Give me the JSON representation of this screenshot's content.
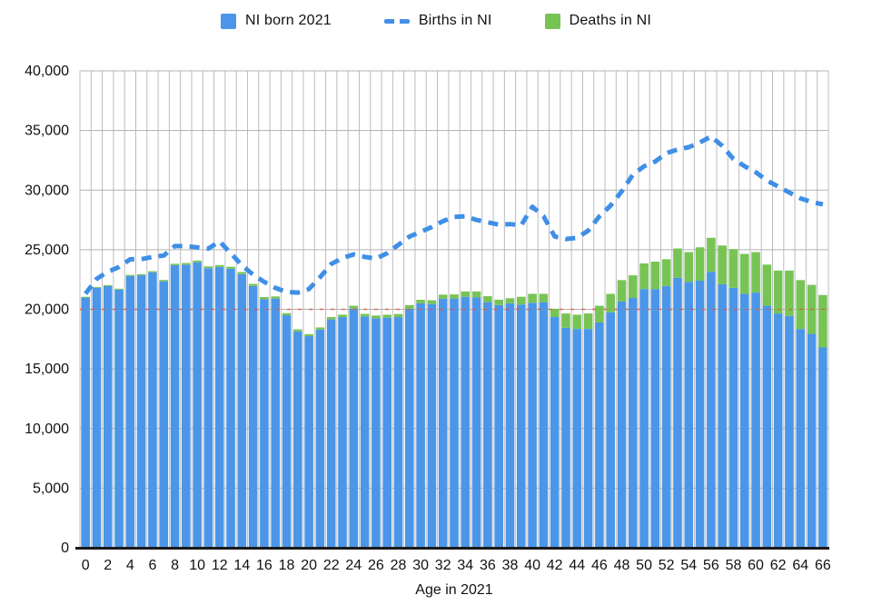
{
  "legend": {
    "items": [
      {
        "label": "NI born 2021",
        "glyph": "square",
        "color": "#4b96e8"
      },
      {
        "label": "Births in NI",
        "glyph": "dashes",
        "color": "#4390e6"
      },
      {
        "label": "Deaths in NI",
        "glyph": "square",
        "color": "#77c455"
      }
    ]
  },
  "axes": {
    "x_title": "Age in 2021",
    "y_tick_labels": [
      "0",
      "5,000",
      "10,000",
      "15,000",
      "20,000",
      "25,000",
      "30,000",
      "35,000",
      "40,000"
    ],
    "x_tick_labels": [
      "0",
      "2",
      "4",
      "6",
      "8",
      "10",
      "12",
      "14",
      "16",
      "18",
      "20",
      "22",
      "24",
      "26",
      "28",
      "30",
      "32",
      "34",
      "36",
      "38",
      "40",
      "42",
      "44",
      "46",
      "48",
      "50",
      "52",
      "54",
      "56",
      "58",
      "60",
      "62",
      "64",
      "66"
    ]
  },
  "colors": {
    "bar_blue": "#4b96e8",
    "bar_green": "#77c455",
    "line_blue": "#3f8fe6",
    "grid_vertical": "#bcbcbc",
    "grid_horizontal": "#b3b3b3",
    "axis_black": "#1a1a1a",
    "reference_red": "#dd5c48",
    "text": "#111111"
  },
  "chart_data": {
    "type": "bar",
    "subtype": "stacked-bars-with-dashed-line",
    "x": [
      0,
      1,
      2,
      3,
      4,
      5,
      6,
      7,
      8,
      9,
      10,
      11,
      12,
      13,
      14,
      15,
      16,
      17,
      18,
      19,
      20,
      21,
      22,
      23,
      24,
      25,
      26,
      27,
      28,
      29,
      30,
      31,
      32,
      33,
      34,
      35,
      36,
      37,
      38,
      39,
      40,
      41,
      42,
      43,
      44,
      45,
      46,
      47,
      48,
      49,
      50,
      51,
      52,
      53,
      54,
      55,
      56,
      57,
      58,
      59,
      60,
      61,
      62,
      63,
      64,
      65,
      66
    ],
    "xlabel": "Age in 2021",
    "ylabel": "",
    "ylim": [
      0,
      40000
    ],
    "y_tick_interval": 5000,
    "grid": {
      "vertical": true,
      "horizontal": true
    },
    "legend_position": "top-center",
    "reference_line": {
      "value": 20000,
      "style": "dotted",
      "color": "#dd5c48"
    },
    "series": [
      {
        "name": "NI born 2021",
        "type": "bar",
        "stack": "base",
        "color": "#4b96e8",
        "values": [
          21000,
          21800,
          21950,
          21650,
          22800,
          22850,
          23100,
          22350,
          23700,
          23750,
          23950,
          23450,
          23550,
          23400,
          22950,
          21950,
          20850,
          20900,
          19500,
          18150,
          17750,
          18300,
          19150,
          19350,
          20050,
          19400,
          19250,
          19300,
          19350,
          20050,
          20500,
          20450,
          20900,
          20900,
          21050,
          21000,
          20600,
          20350,
          20500,
          20400,
          20550,
          20600,
          19350,
          18450,
          18350,
          18350,
          18900,
          19750,
          20650,
          20950,
          21700,
          21700,
          21950,
          22650,
          22300,
          22400,
          23150,
          22100,
          21800,
          21300,
          21400,
          20300,
          19650,
          19450,
          18350,
          17950,
          16800
        ]
      },
      {
        "name": "Deaths in NI",
        "type": "bar",
        "stack": "top",
        "color": "#77c455",
        "values": [
          50,
          60,
          70,
          80,
          90,
          100,
          100,
          110,
          120,
          130,
          140,
          150,
          160,
          170,
          180,
          180,
          180,
          180,
          180,
          170,
          170,
          180,
          200,
          200,
          250,
          220,
          230,
          250,
          260,
          300,
          300,
          310,
          330,
          350,
          450,
          500,
          500,
          460,
          430,
          650,
          750,
          700,
          700,
          1200,
          1200,
          1300,
          1400,
          1550,
          1800,
          1900,
          2150,
          2300,
          2250,
          2450,
          2500,
          2800,
          2850,
          3250,
          3250,
          3350,
          3400,
          3450,
          3600,
          3800,
          4100,
          4100,
          4400
        ]
      },
      {
        "name": "Births in NI",
        "type": "line",
        "style": "dashed",
        "color": "#3f8fe6",
        "values": [
          21300,
          22550,
          23150,
          23550,
          24200,
          24200,
          24400,
          24500,
          25300,
          25300,
          25200,
          25100,
          25700,
          24700,
          23700,
          22900,
          22300,
          21800,
          21450,
          21400,
          21700,
          22700,
          23800,
          24300,
          24600,
          24400,
          24250,
          24700,
          25400,
          26100,
          26500,
          26900,
          27400,
          27750,
          27800,
          27500,
          27300,
          27100,
          27150,
          27050,
          28600,
          27800,
          26100,
          25900,
          26000,
          26600,
          27800,
          28700,
          29900,
          31300,
          32000,
          32400,
          33100,
          33400,
          33600,
          34000,
          34500,
          33700,
          32600,
          32000,
          31500,
          30800,
          30300,
          29800,
          29300,
          29000,
          28800
        ]
      }
    ]
  }
}
